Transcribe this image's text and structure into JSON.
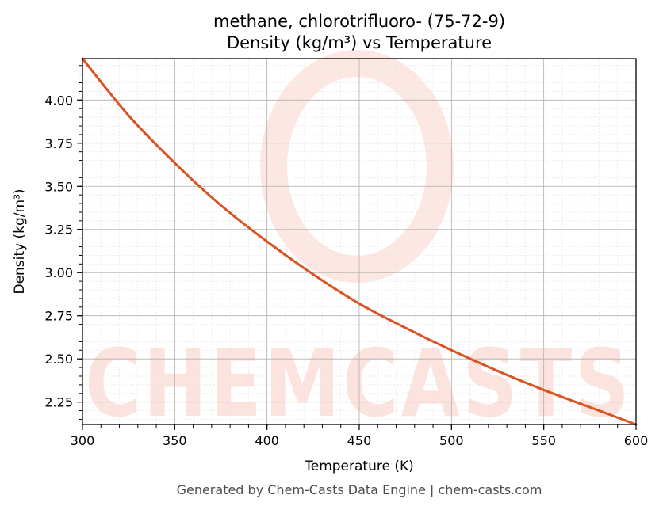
{
  "chart_data": {
    "type": "line",
    "title": "methane, chlorotrifluoro- (75-72-9)",
    "subtitle": "Density (kg/m³) vs Temperature",
    "xlabel": "Temperature (K)",
    "ylabel": "Density (kg/m³)",
    "xlim": [
      300,
      600
    ],
    "ylim": [
      2.12,
      4.24
    ],
    "x_ticks": [
      300,
      350,
      400,
      450,
      500,
      550,
      600
    ],
    "y_ticks": [
      2.25,
      2.5,
      2.75,
      3.0,
      3.25,
      3.5,
      3.75,
      4.0
    ],
    "x_tick_labels": [
      "300",
      "350",
      "400",
      "450",
      "500",
      "550",
      "600"
    ],
    "y_tick_labels": [
      "2.25",
      "2.50",
      "2.75",
      "3.00",
      "3.25",
      "3.50",
      "3.75",
      "4.00"
    ],
    "grid": true,
    "series": [
      {
        "color": "#d95323",
        "x": [
          300,
          325,
          350,
          375,
          400,
          425,
          450,
          475,
          500,
          525,
          550,
          575,
          600
        ],
        "y": [
          4.24,
          3.91,
          3.635,
          3.39,
          3.18,
          2.99,
          2.82,
          2.68,
          2.55,
          2.43,
          2.32,
          2.22,
          2.12
        ]
      }
    ]
  },
  "watermark": "CHEMCASTS",
  "footer": "Generated by Chem-Casts Data Engine | chem-casts.com"
}
